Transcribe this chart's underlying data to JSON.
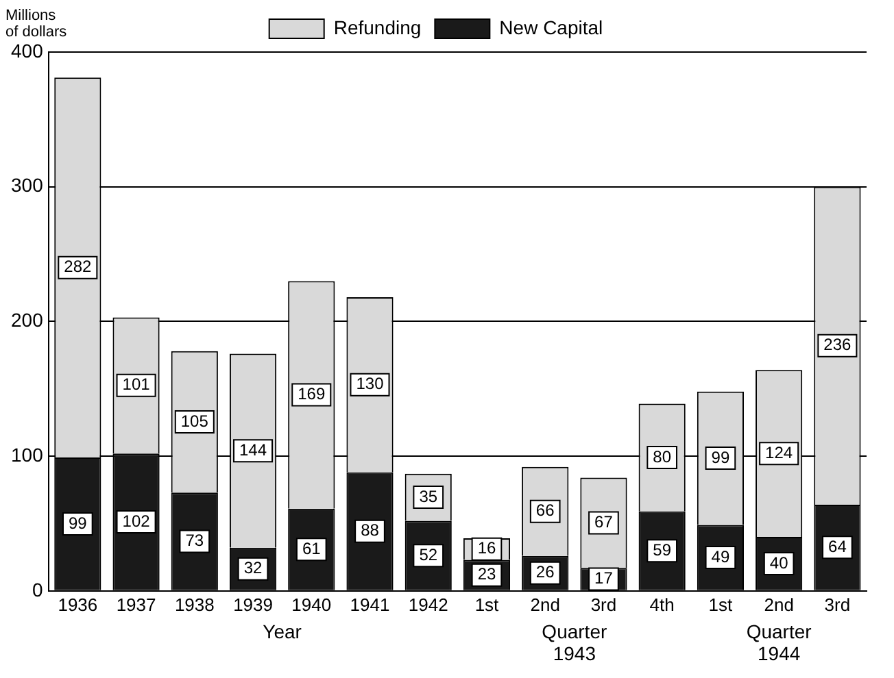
{
  "chart_data": {
    "type": "bar",
    "stacked": true,
    "ylabel": "Millions of dollars",
    "categories": [
      "1936",
      "1937",
      "1938",
      "1939",
      "1940",
      "1941",
      "1942",
      "1st",
      "2nd",
      "3rd",
      "4th",
      "1st",
      "2nd",
      "3rd"
    ],
    "series": [
      {
        "name": "New Capital",
        "color": "#1a1a1a",
        "values": [
          99,
          102,
          73,
          32,
          61,
          88,
          52,
          23,
          26,
          17,
          59,
          49,
          40,
          64
        ]
      },
      {
        "name": "Refunding",
        "color": "#d9d9d9",
        "values": [
          282,
          101,
          105,
          144,
          169,
          130,
          35,
          16,
          66,
          67,
          80,
          99,
          124,
          236
        ]
      }
    ],
    "ylim": [
      0,
      400
    ],
    "yticks": [
      0,
      100,
      200,
      300,
      400
    ],
    "grid": "y",
    "legend": "top",
    "data_labels": true,
    "annotations": [
      "Year",
      "Quarter\n1943",
      "Quarter\n1944"
    ]
  }
}
